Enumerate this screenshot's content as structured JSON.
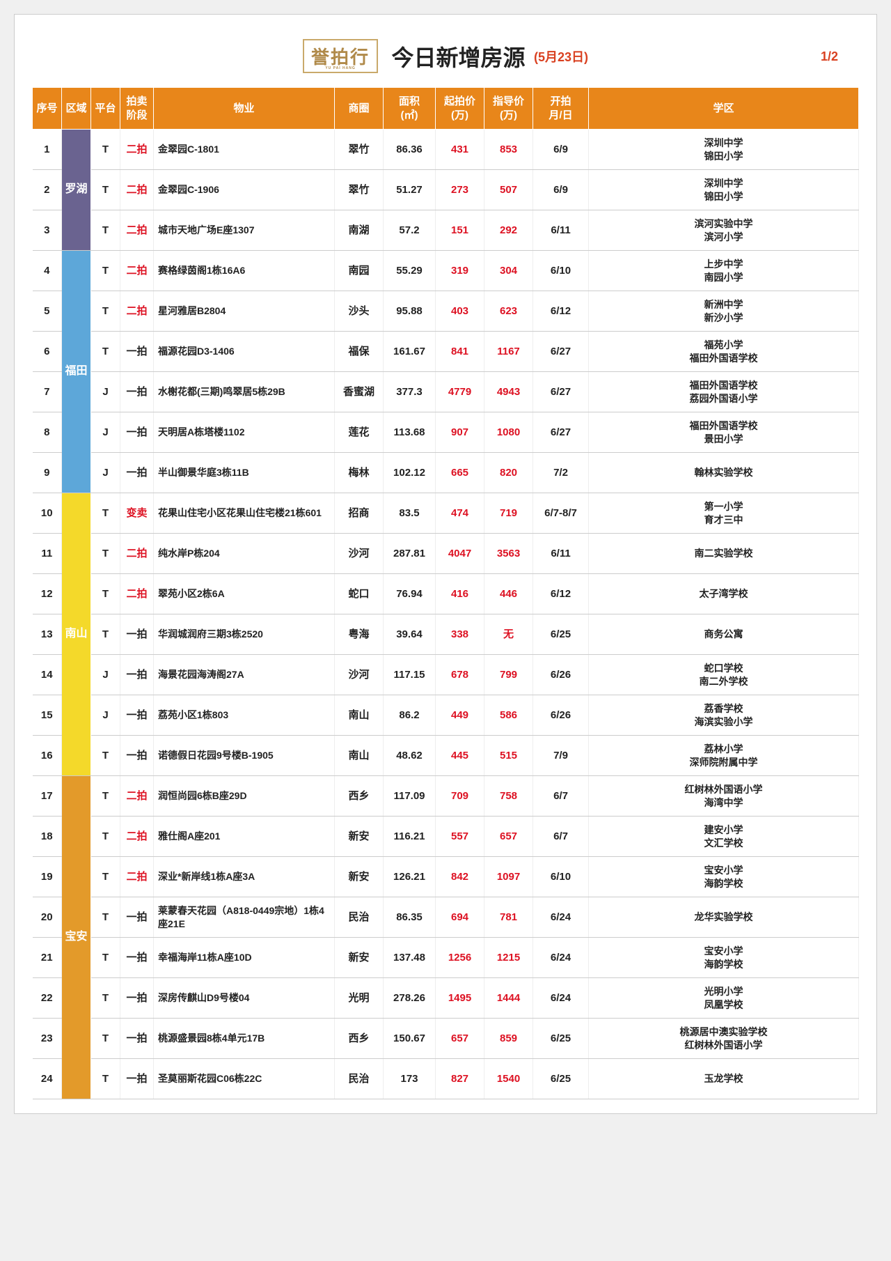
{
  "header": {
    "logo_text": "誉拍行",
    "title": "今日新增房源",
    "date": "(5月23日)",
    "page_num": "1/2"
  },
  "columns": [
    "序号",
    "区域",
    "平台",
    "拍卖\n阶段",
    "物业",
    "商圈",
    "面积\n(㎡)",
    "起拍价\n(万)",
    "指导价\n(万)",
    "开拍\n月/日",
    "学区"
  ],
  "regions": [
    {
      "name": "罗湖",
      "color": "#6a6390",
      "span": 3
    },
    {
      "name": "福田",
      "color": "#5da7d9",
      "span": 6
    },
    {
      "name": "南山",
      "color": "#f4d92a",
      "span": 7
    },
    {
      "name": "宝安",
      "color": "#e39a2a",
      "span": 8
    }
  ],
  "rows": [
    {
      "seq": "1",
      "plat": "T",
      "stage": "二拍",
      "stage_red": true,
      "prop": "金翠园C-1801",
      "biz": "翠竹",
      "area": "86.36",
      "start": "431",
      "guide": "853",
      "date": "6/9",
      "school": "深圳中学\n锦田小学"
    },
    {
      "seq": "2",
      "plat": "T",
      "stage": "二拍",
      "stage_red": true,
      "prop": "金翠园C-1906",
      "biz": "翠竹",
      "area": "51.27",
      "start": "273",
      "guide": "507",
      "date": "6/9",
      "school": "深圳中学\n锦田小学"
    },
    {
      "seq": "3",
      "plat": "T",
      "stage": "二拍",
      "stage_red": true,
      "prop": "城市天地广场E座1307",
      "biz": "南湖",
      "area": "57.2",
      "start": "151",
      "guide": "292",
      "date": "6/11",
      "school": "滨河实验中学\n滨河小学"
    },
    {
      "seq": "4",
      "plat": "T",
      "stage": "二拍",
      "stage_red": true,
      "prop": "赛格绿茵阁1栋16A6",
      "biz": "南园",
      "area": "55.29",
      "start": "319",
      "guide": "304",
      "date": "6/10",
      "school": "上步中学\n南园小学"
    },
    {
      "seq": "5",
      "plat": "T",
      "stage": "二拍",
      "stage_red": true,
      "prop": "星河雅居B2804",
      "biz": "沙头",
      "area": "95.88",
      "start": "403",
      "guide": "623",
      "date": "6/12",
      "school": "新洲中学\n新沙小学"
    },
    {
      "seq": "6",
      "plat": "T",
      "stage": "一拍",
      "stage_red": false,
      "prop": "福源花园D3-1406",
      "biz": "福保",
      "area": "161.67",
      "start": "841",
      "guide": "1167",
      "date": "6/27",
      "school": "福苑小学\n福田外国语学校"
    },
    {
      "seq": "7",
      "plat": "J",
      "stage": "一拍",
      "stage_red": false,
      "prop": "水榭花都(三期)鸣翠居5栋29B",
      "biz": "香蜜湖",
      "area": "377.3",
      "start": "4779",
      "guide": "4943",
      "date": "6/27",
      "school": "福田外国语学校\n荔园外国语小学"
    },
    {
      "seq": "8",
      "plat": "J",
      "stage": "一拍",
      "stage_red": false,
      "prop": "天明居A栋塔楼1102",
      "biz": "莲花",
      "area": "113.68",
      "start": "907",
      "guide": "1080",
      "date": "6/27",
      "school": "福田外国语学校\n景田小学"
    },
    {
      "seq": "9",
      "plat": "J",
      "stage": "一拍",
      "stage_red": false,
      "prop": "半山御景华庭3栋11B",
      "biz": "梅林",
      "area": "102.12",
      "start": "665",
      "guide": "820",
      "date": "7/2",
      "school": "翰林实验学校"
    },
    {
      "seq": "10",
      "plat": "T",
      "stage": "变卖",
      "stage_red": true,
      "prop": "花果山住宅小区花果山住宅楼21栋601",
      "biz": "招商",
      "area": "83.5",
      "start": "474",
      "guide": "719",
      "date": "6/7-8/7",
      "school": "第一小学\n育才三中"
    },
    {
      "seq": "11",
      "plat": "T",
      "stage": "二拍",
      "stage_red": true,
      "prop": "纯水岸P栋204",
      "biz": "沙河",
      "area": "287.81",
      "start": "4047",
      "guide": "3563",
      "date": "6/11",
      "school": "南二实验学校"
    },
    {
      "seq": "12",
      "plat": "T",
      "stage": "二拍",
      "stage_red": true,
      "prop": "翠苑小区2栋6A",
      "biz": "蛇口",
      "area": "76.94",
      "start": "416",
      "guide": "446",
      "date": "6/12",
      "school": "太子湾学校"
    },
    {
      "seq": "13",
      "plat": "T",
      "stage": "一拍",
      "stage_red": false,
      "prop": "华润城润府三期3栋2520",
      "biz": "粤海",
      "area": "39.64",
      "start": "338",
      "guide": "无",
      "date": "6/25",
      "school": "商务公寓"
    },
    {
      "seq": "14",
      "plat": "J",
      "stage": "一拍",
      "stage_red": false,
      "prop": "海景花园海涛阁27A",
      "biz": "沙河",
      "area": "117.15",
      "start": "678",
      "guide": "799",
      "date": "6/26",
      "school": "蛇口学校\n南二外学校"
    },
    {
      "seq": "15",
      "plat": "J",
      "stage": "一拍",
      "stage_red": false,
      "prop": "荔苑小区1栋803",
      "biz": "南山",
      "area": "86.2",
      "start": "449",
      "guide": "586",
      "date": "6/26",
      "school": "荔香学校\n海滨实验小学"
    },
    {
      "seq": "16",
      "plat": "T",
      "stage": "一拍",
      "stage_red": false,
      "prop": "诺德假日花园9号楼B-1905",
      "biz": "南山",
      "area": "48.62",
      "start": "445",
      "guide": "515",
      "date": "7/9",
      "school": "荔林小学\n深师院附属中学"
    },
    {
      "seq": "17",
      "plat": "T",
      "stage": "二拍",
      "stage_red": true,
      "prop": "润恒尚园6栋B座29D",
      "biz": "西乡",
      "area": "117.09",
      "start": "709",
      "guide": "758",
      "date": "6/7",
      "school": "红树林外国语小学\n海湾中学"
    },
    {
      "seq": "18",
      "plat": "T",
      "stage": "二拍",
      "stage_red": true,
      "prop": "雅仕阁A座201",
      "biz": "新安",
      "area": "116.21",
      "start": "557",
      "guide": "657",
      "date": "6/7",
      "school": "建安小学\n文汇学校"
    },
    {
      "seq": "19",
      "plat": "T",
      "stage": "二拍",
      "stage_red": true,
      "prop": "深业*新岸线1栋A座3A",
      "biz": "新安",
      "area": "126.21",
      "start": "842",
      "guide": "1097",
      "date": "6/10",
      "school": "宝安小学\n海韵学校"
    },
    {
      "seq": "20",
      "plat": "T",
      "stage": "一拍",
      "stage_red": false,
      "prop": "莱蒙春天花园（A818-0449宗地）1栋4座21E",
      "biz": "民治",
      "area": "86.35",
      "start": "694",
      "guide": "781",
      "date": "6/24",
      "school": "龙华实验学校"
    },
    {
      "seq": "21",
      "plat": "T",
      "stage": "一拍",
      "stage_red": false,
      "prop": "幸福海岸11栋A座10D",
      "biz": "新安",
      "area": "137.48",
      "start": "1256",
      "guide": "1215",
      "date": "6/24",
      "school": "宝安小学\n海韵学校"
    },
    {
      "seq": "22",
      "plat": "T",
      "stage": "一拍",
      "stage_red": false,
      "prop": "深房传麒山D9号楼04",
      "biz": "光明",
      "area": "278.26",
      "start": "1495",
      "guide": "1444",
      "date": "6/24",
      "school": "光明小学\n凤凰学校"
    },
    {
      "seq": "23",
      "plat": "T",
      "stage": "一拍",
      "stage_red": false,
      "prop": "桃源盛景园8栋4单元17B",
      "biz": "西乡",
      "area": "150.67",
      "start": "657",
      "guide": "859",
      "date": "6/25",
      "school": "桃源居中澳实验学校\n红树林外国语小学"
    },
    {
      "seq": "24",
      "plat": "T",
      "stage": "一拍",
      "stage_red": false,
      "prop": "圣莫丽斯花园C06栋22C",
      "biz": "民治",
      "area": "173",
      "start": "827",
      "guide": "1540",
      "date": "6/25",
      "school": "玉龙学校"
    }
  ]
}
